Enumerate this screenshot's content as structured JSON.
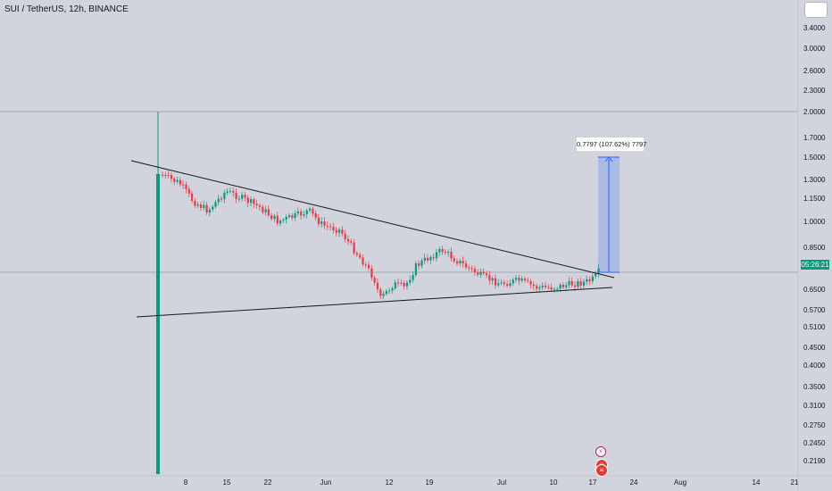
{
  "header": {
    "symbol_title": "SUI / TetherUS, 12h, BINANCE"
  },
  "price_axis": {
    "ticks": [
      "3.4000",
      "3.0000",
      "2.6000",
      "2.3000",
      "2.0000",
      "1.7000",
      "1.5000",
      "1.3000",
      "1.1500",
      "1.0000",
      "0.8500",
      "0.6500",
      "0.5700",
      "0.5100",
      "0.4500",
      "0.4000",
      "0.3500",
      "0.3100",
      "0.2750",
      "0.2450",
      "0.2190"
    ],
    "current_price_label": "05:26:21"
  },
  "time_axis": {
    "ticks": [
      "8",
      "15",
      "22",
      "Jun",
      "12",
      "19",
      "Jul",
      "10",
      "17",
      "24",
      "Aug",
      "14",
      "21"
    ]
  },
  "measure_tool": {
    "label": "0.7797 (107.62%) 7797"
  },
  "events": {
    "earnings_icon": "lightning-bolt-icon",
    "economic_icon": "us-flag-icon"
  },
  "colors": {
    "background": "#d1d4dc",
    "up_candle": "#089981",
    "down_candle": "#f23645",
    "trendline": "#131722",
    "measure_fill": "#2962ff",
    "price_line": "#9598a1"
  }
}
